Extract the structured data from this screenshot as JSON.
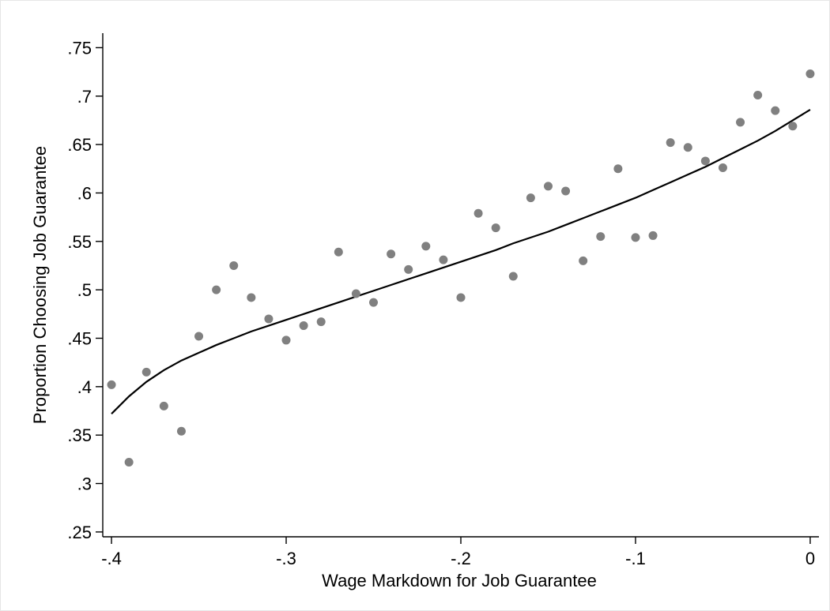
{
  "chart_data": {
    "type": "scatter",
    "title": "",
    "xlabel": "Wage Markdown for Job Guarantee",
    "ylabel": "Proportion Choosing Job Guarantee",
    "xlim": [
      -0.405,
      0.005
    ],
    "ylim": [
      0.245,
      0.765
    ],
    "grid": false,
    "legend": "none",
    "xticks": [
      -0.4,
      -0.3,
      -0.2,
      -0.1,
      0
    ],
    "xtick_labels": [
      "-.4",
      "-.3",
      "-.2",
      "-.1",
      "0"
    ],
    "yticks": [
      0.25,
      0.3,
      0.35,
      0.4,
      0.45,
      0.5,
      0.55,
      0.6,
      0.65,
      0.7,
      0.75
    ],
    "ytick_labels": [
      ".25",
      ".3",
      ".35",
      ".4",
      ".45",
      ".5",
      ".55",
      ".6",
      ".65",
      ".7",
      ".75"
    ],
    "series": [
      {
        "type": "scatter",
        "color": "#808080",
        "x": [
          -0.4,
          -0.39,
          -0.38,
          -0.37,
          -0.36,
          -0.35,
          -0.34,
          -0.33,
          -0.32,
          -0.31,
          -0.3,
          -0.29,
          -0.28,
          -0.27,
          -0.26,
          -0.25,
          -0.24,
          -0.23,
          -0.22,
          -0.21,
          -0.2,
          -0.19,
          -0.18,
          -0.17,
          -0.16,
          -0.15,
          -0.14,
          -0.13,
          -0.12,
          -0.11,
          -0.1,
          -0.09,
          -0.08,
          -0.07,
          -0.06,
          -0.05,
          -0.04,
          -0.03,
          -0.02,
          -0.01,
          0.0
        ],
        "y": [
          0.402,
          0.322,
          0.415,
          0.38,
          0.354,
          0.452,
          0.5,
          0.525,
          0.492,
          0.47,
          0.448,
          0.463,
          0.467,
          0.539,
          0.496,
          0.487,
          0.537,
          0.521,
          0.545,
          0.531,
          0.492,
          0.579,
          0.564,
          0.514,
          0.595,
          0.607,
          0.602,
          0.53,
          0.555,
          0.625,
          0.554,
          0.556,
          0.652,
          0.647,
          0.633,
          0.626,
          0.673,
          0.701,
          0.685,
          0.669,
          0.723
        ]
      },
      {
        "type": "line",
        "color": "#000000",
        "x": [
          -0.4,
          -0.39,
          -0.38,
          -0.37,
          -0.36,
          -0.35,
          -0.34,
          -0.33,
          -0.32,
          -0.31,
          -0.3,
          -0.29,
          -0.28,
          -0.27,
          -0.26,
          -0.25,
          -0.24,
          -0.23,
          -0.22,
          -0.21,
          -0.2,
          -0.19,
          -0.18,
          -0.17,
          -0.16,
          -0.15,
          -0.14,
          -0.13,
          -0.12,
          -0.11,
          -0.1,
          -0.09,
          -0.08,
          -0.07,
          -0.06,
          -0.05,
          -0.04,
          -0.03,
          -0.02,
          -0.01,
          0.0
        ],
        "y": [
          0.372,
          0.39,
          0.405,
          0.417,
          0.427,
          0.435,
          0.443,
          0.45,
          0.457,
          0.463,
          0.469,
          0.475,
          0.481,
          0.487,
          0.493,
          0.499,
          0.505,
          0.511,
          0.517,
          0.523,
          0.529,
          0.535,
          0.541,
          0.548,
          0.554,
          0.56,
          0.567,
          0.574,
          0.581,
          0.588,
          0.595,
          0.603,
          0.611,
          0.619,
          0.627,
          0.636,
          0.645,
          0.654,
          0.664,
          0.675,
          0.686
        ]
      }
    ]
  }
}
